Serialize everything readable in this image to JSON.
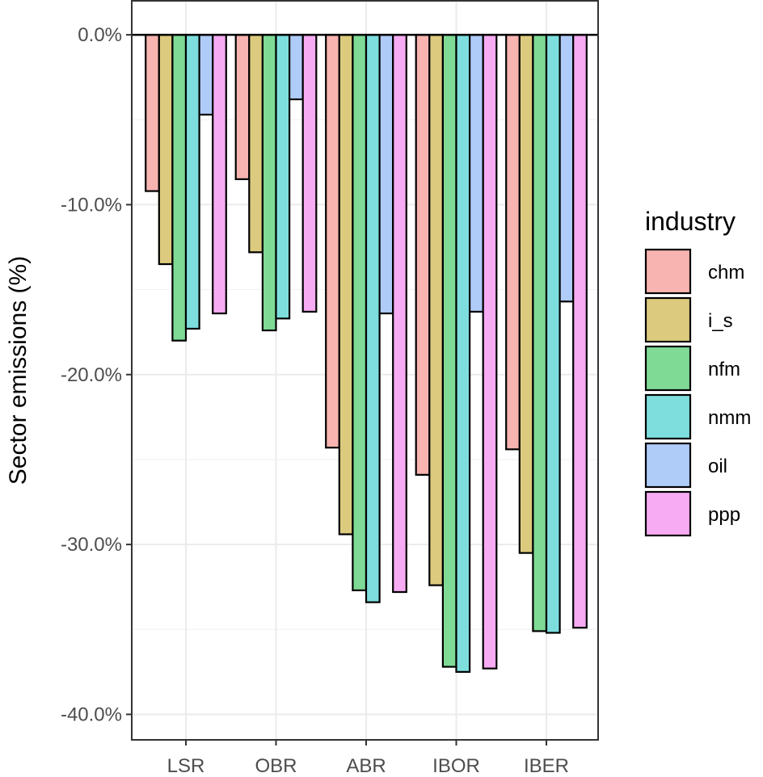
{
  "chart_data": {
    "type": "bar",
    "xlabel": "",
    "ylabel": "Sector emissions (%)",
    "categories": [
      "LSR",
      "OBR",
      "ABR",
      "IBOR",
      "IBER"
    ],
    "ylim": [
      -41.5,
      2
    ],
    "yticks": [
      0,
      -10,
      -20,
      -30,
      -40
    ],
    "ytick_labels": [
      "0.0%",
      "-10.0%",
      "-20.0%",
      "-30.0%",
      "-40.0%"
    ],
    "grid": true,
    "legend": {
      "title": "industry",
      "position": "right"
    },
    "series": [
      {
        "name": "chm",
        "color": "#F8B4B0",
        "values": [
          -9.2,
          -8.5,
          -24.3,
          -25.9,
          -24.4
        ]
      },
      {
        "name": "i_s",
        "color": "#DCCB7E",
        "values": [
          -13.5,
          -12.8,
          -29.4,
          -32.4,
          -30.5
        ]
      },
      {
        "name": "nfm",
        "color": "#7EDA95",
        "values": [
          -18.0,
          -17.4,
          -32.7,
          -37.2,
          -35.1
        ]
      },
      {
        "name": "nmm",
        "color": "#7EDEDE",
        "values": [
          -17.3,
          -16.7,
          -33.4,
          -37.5,
          -35.2
        ]
      },
      {
        "name": "oil",
        "color": "#AFCBF8",
        "values": [
          -4.7,
          -3.8,
          -16.4,
          -16.3,
          -15.7
        ]
      },
      {
        "name": "ppp",
        "color": "#F6ABF2",
        "values": [
          -16.4,
          -16.3,
          -32.8,
          -37.3,
          -34.9
        ]
      }
    ]
  }
}
